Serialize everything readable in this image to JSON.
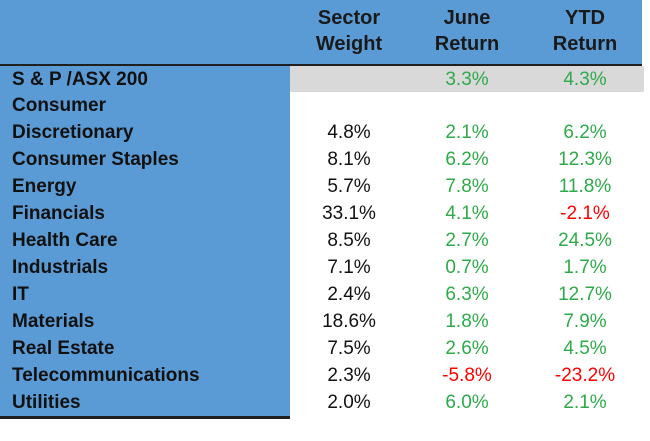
{
  "header": {
    "col1": [
      "Sector",
      "Weight"
    ],
    "col2": [
      "June",
      "Return"
    ],
    "col3": [
      "YTD",
      "Return"
    ]
  },
  "index_row": {
    "label": "S & P /ASX 200",
    "weight": "",
    "june": "3.3%",
    "ytd": "4.3%"
  },
  "rows": [
    {
      "label": [
        "Consumer",
        "Discretionary"
      ],
      "weight": "4.8%",
      "june": "2.1%",
      "ytd": "6.2%"
    },
    {
      "label": [
        "Consumer Staples"
      ],
      "weight": "8.1%",
      "june": "6.2%",
      "ytd": "12.3%"
    },
    {
      "label": [
        "Energy"
      ],
      "weight": "5.7%",
      "june": "7.8%",
      "ytd": "11.8%"
    },
    {
      "label": [
        "Financials"
      ],
      "weight": "33.1%",
      "june": "4.1%",
      "ytd": "-2.1%"
    },
    {
      "label": [
        "Health Care"
      ],
      "weight": "8.5%",
      "june": "2.7%",
      "ytd": "24.5%"
    },
    {
      "label": [
        "Industrials"
      ],
      "weight": "7.1%",
      "june": "0.7%",
      "ytd": "1.7%"
    },
    {
      "label": [
        "IT"
      ],
      "weight": "2.4%",
      "june": "6.3%",
      "ytd": "12.7%"
    },
    {
      "label": [
        "Materials"
      ],
      "weight": "18.6%",
      "june": "1.8%",
      "ytd": "7.9%"
    },
    {
      "label": [
        "Real Estate"
      ],
      "weight": "7.5%",
      "june": "2.6%",
      "ytd": "4.5%"
    },
    {
      "label": [
        "Telecommunications"
      ],
      "weight": "2.3%",
      "june": "-5.8%",
      "ytd": "-23.2%"
    },
    {
      "label": [
        "Utilities"
      ],
      "weight": "2.0%",
      "june": "6.0%",
      "ytd": "2.1%"
    }
  ],
  "colors": {
    "band": "#5b9bd5",
    "positive": "#2eaa4a",
    "negative": "#ff0000",
    "index_highlight": "#d9d9d9"
  }
}
